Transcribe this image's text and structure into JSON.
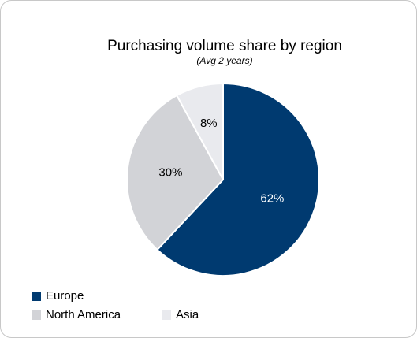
{
  "chart_data": {
    "type": "pie",
    "title": "Purchasing volume share by region",
    "subtitle": "(Avg 2 years)",
    "categories": [
      "Europe",
      "North America",
      "Asia"
    ],
    "values": [
      62,
      30,
      8
    ],
    "value_labels": [
      "62%",
      "30%",
      "8%"
    ],
    "colors": [
      "#003a70",
      "#d2d3d7",
      "#e9eaee"
    ],
    "label_colors": [
      "#ffffff",
      "#000000",
      "#000000"
    ],
    "legend": "bottom-left"
  }
}
